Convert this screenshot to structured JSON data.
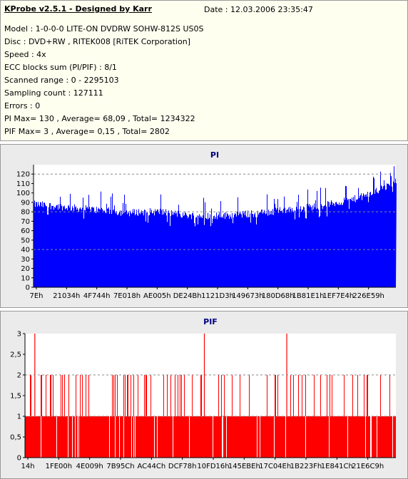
{
  "header": {
    "title": "KProbe v2.5.1 - Designed by Karr",
    "date": "Date : 12.03.2006 23:35:47",
    "lines": [
      "Model : 1-0-0-0 LITE-ON DVDRW SOHW-812S  US0S",
      "Disc : DVD+RW , RITEK008 [RiTEK Corporation]",
      "Speed : 4x",
      "ECC blocks sum (PI/PIF) : 8/1",
      "Scanned range : 0 - 2295103",
      "Sampling count : 127111",
      "Errors : 0",
      "PI Max= 130 , Average= 68,09 , Total= 1234322",
      "PIF Max= 3 , Average= 0,15 , Total= 2802"
    ]
  },
  "colors": {
    "pi_fill": "#0000ff",
    "pif_fill": "#ff0000",
    "plot_bg": "#ffffff",
    "panel_bg": "#ebebeb",
    "title_color": "#000080",
    "header_bg": "#fffff0"
  },
  "chart_data": [
    {
      "type": "bar",
      "title": "PI",
      "ylim": [
        0,
        130
      ],
      "yticks": [
        "0",
        "10",
        "20",
        "30",
        "40",
        "50",
        "60",
        "70",
        "80",
        "90",
        "100",
        "110",
        "120"
      ],
      "dashed_gridlines_at": [
        40,
        80,
        120
      ],
      "xticks": [
        "7Eh",
        "21034h",
        "4F744h",
        "7E018h",
        "AE005h",
        "DE24Bh",
        "1121D3h",
        "149673h",
        "180D68h",
        "1B81E1h",
        "1EF7E4h",
        "226E59h"
      ],
      "xrange_lba": [
        0,
        2295103
      ],
      "envelope": {
        "x_lba": [
          0,
          200000,
          400000,
          600000,
          700000,
          800000,
          1000000,
          1200000,
          1400000,
          1600000,
          1800000,
          2000000,
          2100000,
          2200000,
          2295103
        ],
        "pi_level": [
          88,
          85,
          82,
          79,
          80,
          80,
          76,
          76,
          78,
          82,
          86,
          92,
          97,
          104,
          112
        ]
      },
      "max": 130
    },
    {
      "type": "bar",
      "title": "PIF",
      "ylim": [
        0,
        3
      ],
      "yticks": [
        "0",
        "0,5",
        "1",
        "1,5",
        "2",
        "2,5",
        "3"
      ],
      "dashed_gridlines_at": [
        1,
        2
      ],
      "xticks": [
        "14h",
        "1FE00h",
        "4E009h",
        "7B95Ch",
        "AC44Ch",
        "DCF78h",
        "10FD16h",
        "145EBEh",
        "17C04Eh",
        "1B223Fh",
        "1E841Ch",
        "21E6C9h"
      ],
      "xrange_lba": [
        0,
        2295103
      ],
      "baseline_value": 1,
      "spikes_at_3_lba": [
        61000,
        1110000,
        1620000
      ],
      "max": 3
    }
  ]
}
